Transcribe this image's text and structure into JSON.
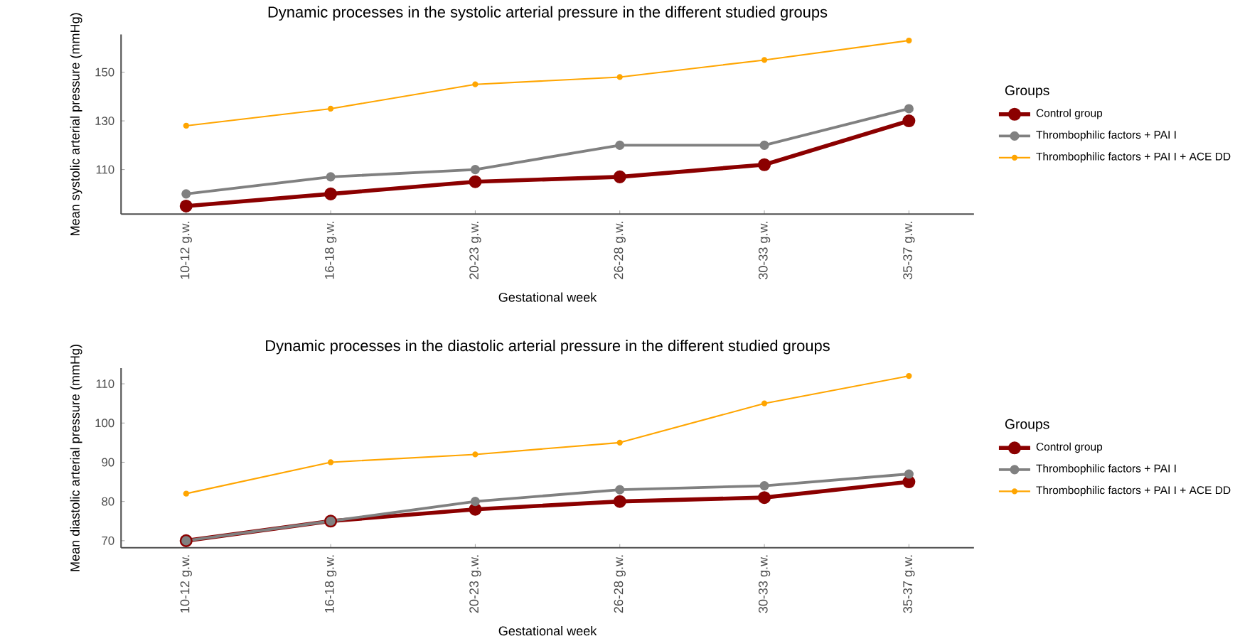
{
  "chart_data": [
    {
      "type": "line",
      "title": "Dynamic processes in the systolic arterial pressure in the different studied groups",
      "xlabel": "Gestational week",
      "ylabel": "Mean systolic arterial pressure (mmHg)",
      "legend_title": "Groups",
      "categories": [
        "10-12 g.w.",
        "16-18 g.w.",
        "20-23 g.w.",
        "26-28 g.w.",
        "30-33 g.w.",
        "35-37 g.w."
      ],
      "series": [
        {
          "name": "Control group",
          "color": "#8b0000",
          "values": [
            95,
            100,
            105,
            107,
            112,
            130
          ]
        },
        {
          "name": "Thrombophilic factors + PAI I",
          "color": "#808080",
          "values": [
            100,
            107,
            110,
            120,
            120,
            135
          ]
        },
        {
          "name": "Thrombophilic factors + PAI I + ACE DD",
          "color": "#ffa500",
          "values": [
            128,
            135,
            145,
            148,
            155,
            163
          ]
        }
      ],
      "ylim": [
        91.7,
        165.5
      ],
      "yticks": [
        110,
        130,
        150
      ],
      "grid": false,
      "legend": "right",
      "marker": "circle",
      "line_style": "solid"
    },
    {
      "type": "line",
      "title": "Dynamic processes in the diastolic arterial pressure in the different studied groups",
      "xlabel": "Gestational week",
      "ylabel": "Mean diastolic arterial pressure (mmHg)",
      "legend_title": "Groups",
      "categories": [
        "10-12 g.w.",
        "16-18 g.w.",
        "20-23 g.w.",
        "26-28 g.w.",
        "30-33 g.w.",
        "35-37 g.w."
      ],
      "series": [
        {
          "name": "Control group",
          "color": "#8b0000",
          "values": [
            70,
            75,
            78,
            80,
            81,
            85
          ]
        },
        {
          "name": "Thrombophilic factors + PAI I",
          "color": "#808080",
          "values": [
            70,
            75,
            80,
            83,
            84,
            87
          ]
        },
        {
          "name": "Thrombophilic factors + PAI I + ACE DD",
          "color": "#ffa500",
          "values": [
            82,
            90,
            92,
            95,
            105,
            112
          ]
        }
      ],
      "ylim": [
        68.2,
        114
      ],
      "yticks": [
        70,
        80,
        90,
        100,
        110
      ],
      "grid": false,
      "legend": "right",
      "marker": "circle",
      "line_style": "solid"
    }
  ]
}
